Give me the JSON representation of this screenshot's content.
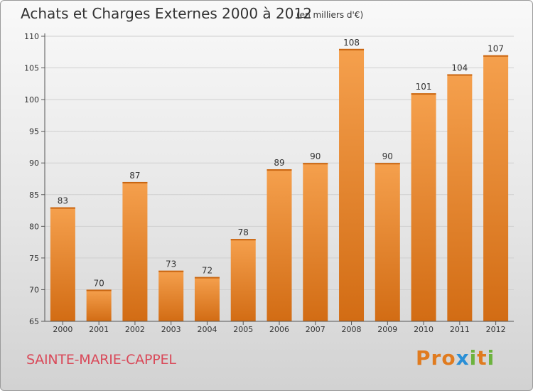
{
  "header": {
    "title": "Achats et Charges Externes 2000 à 2012",
    "unit": "(en milliers d'€)"
  },
  "footer": {
    "commune": "SAINTE-MARIE-CAPPEL",
    "logo_letters": [
      "P",
      "r",
      "o",
      "x",
      "i",
      "t",
      "i"
    ],
    "logo_colors": [
      "#e07b1f",
      "#e07b1f",
      "#e07b1f",
      "#2a8fd6",
      "#6cb33e",
      "#e07b1f",
      "#6cb33e"
    ]
  },
  "colors": {
    "bar_light": "#f5a04d",
    "bar_dark": "#d26c14"
  },
  "chart_data": {
    "type": "bar",
    "title": "Achats et Charges Externes 2000 à 2012",
    "subtitle": "(en milliers d'€)",
    "xlabel": "",
    "ylabel": "",
    "categories": [
      "2000",
      "2001",
      "2002",
      "2003",
      "2004",
      "2005",
      "2006",
      "2007",
      "2008",
      "2009",
      "2010",
      "2011",
      "2012"
    ],
    "values": [
      83,
      70,
      87,
      73,
      72,
      78,
      89,
      90,
      108,
      90,
      101,
      104,
      107
    ],
    "ylim": [
      65,
      110
    ],
    "yticks": [
      65,
      70,
      75,
      80,
      85,
      90,
      95,
      100,
      105,
      110
    ],
    "grid": true
  }
}
